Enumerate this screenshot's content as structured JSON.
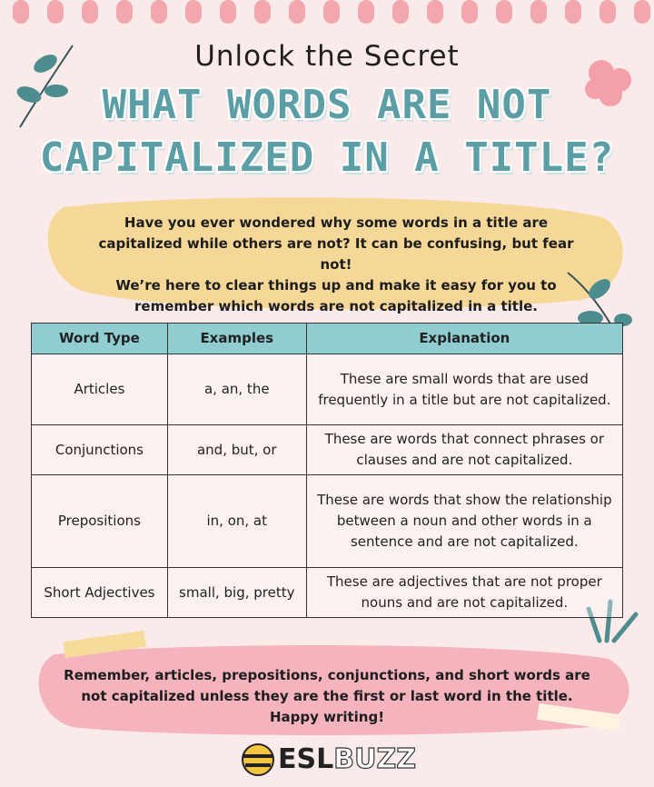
{
  "header": {
    "subtitle": "Unlock the Secret",
    "title_lines": [
      "WHAT WORDS ARE NOT",
      "CAPITALIZED IN A TITLE?"
    ]
  },
  "intro": {
    "lines": [
      "Have you ever wondered why some words in a title are",
      "capitalized while others are not? It can be confusing, but fear not!",
      "We’re here to clear things up and make it easy for you to",
      "remember which words are not capitalized in a title."
    ]
  },
  "table": {
    "header": [
      "Word Type",
      "Examples",
      "Explanation"
    ],
    "rows": [
      [
        "Articles",
        "a, an, the",
        "These are small words that are used frequently in a title but are not capitalized."
      ],
      [
        "Conjunctions",
        "and, but, or",
        "These are words that connect phrases or clauses and are not capitalized."
      ],
      [
        "Prepositions",
        "in, on, at",
        "These are words that show the relationship between a noun and other words in a sentence and are not capitalized."
      ],
      [
        "Short Adjectives",
        "small, big, pretty",
        "These are adjectives that are not proper nouns and are not capitalized."
      ]
    ]
  },
  "outro": {
    "lines": [
      "Remember, articles, prepositions, conjunctions, and short words are",
      "not capitalized unless they are the first or last word in the title.",
      "Happy writing!"
    ]
  },
  "logo": [
    "ESL",
    "BUZZ"
  ]
}
